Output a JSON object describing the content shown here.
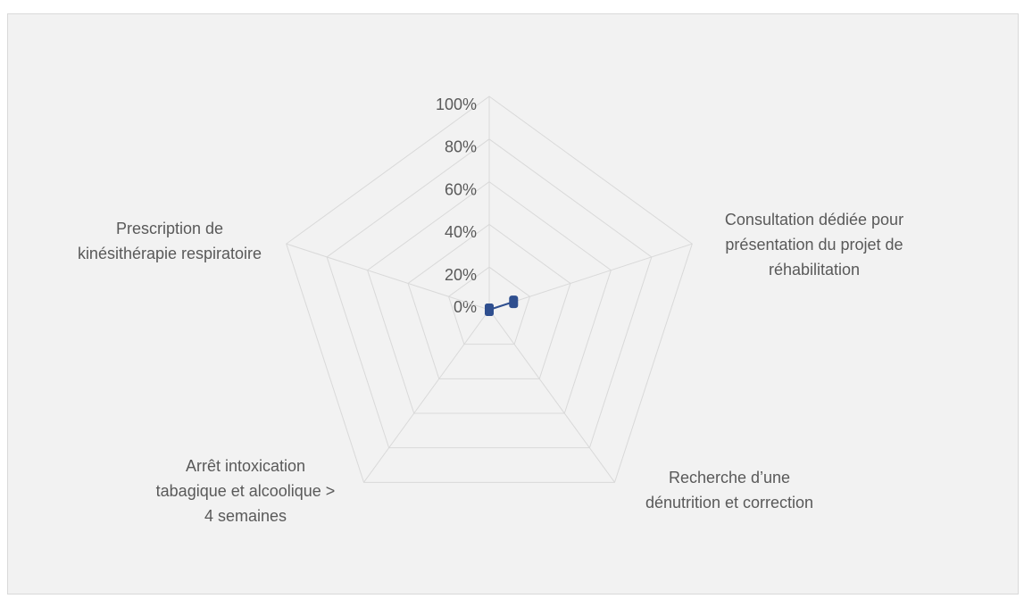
{
  "chart_data": {
    "type": "radar",
    "categories": [
      null,
      "Consultation dédiée pour présentation du projet de réhabilitation",
      "Recherche d’une dénutrition et correction",
      "Arrêt intoxication tabagique et alcoolique > 4 semaines",
      "Prescription de kinésithérapie respiratoire"
    ],
    "series": [
      {
        "color": "#2f4f8f",
        "values": [
          0,
          12,
          0,
          0,
          0
        ]
      }
    ],
    "ylim": [
      0,
      100
    ],
    "yticks": [
      {
        "value": 0,
        "label": "0%"
      },
      {
        "value": 20,
        "label": "20%"
      },
      {
        "value": 40,
        "label": "40%"
      },
      {
        "value": 60,
        "label": "60%"
      },
      {
        "value": 80,
        "label": "80%"
      },
      {
        "value": 100,
        "label": "100%"
      }
    ],
    "grid": true
  }
}
